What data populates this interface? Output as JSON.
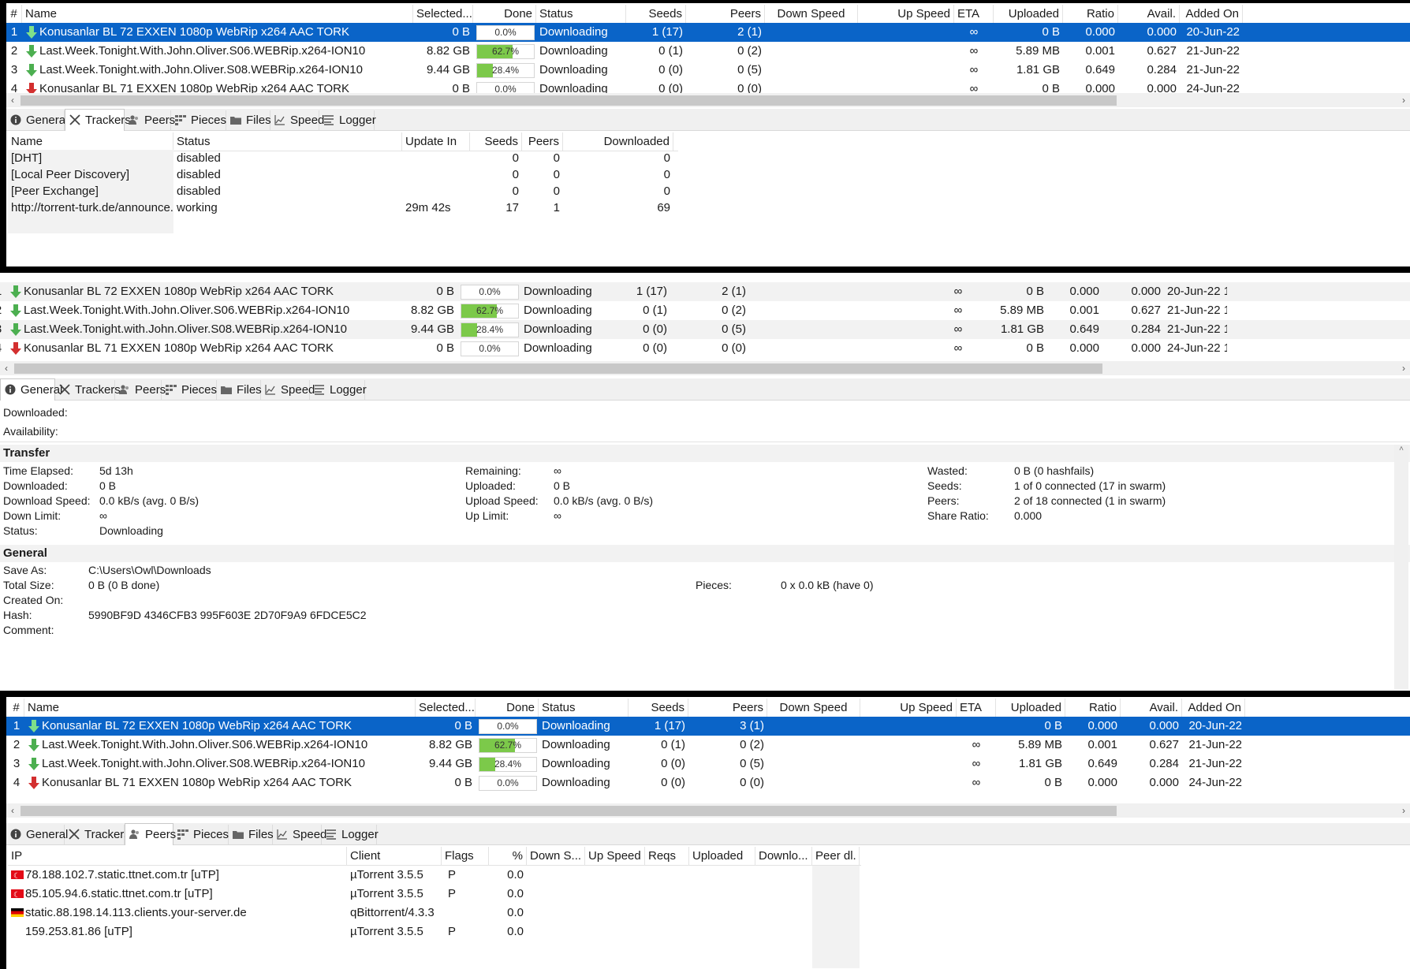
{
  "colors": {
    "selection": "#0a64c8",
    "progress": "#7cc94a",
    "download_green": "#4caf50",
    "download_red": "#d32f2f"
  },
  "torrent_columns": [
    "#",
    "Name",
    "Selected...",
    "Done",
    "Status",
    "Seeds",
    "Peers",
    "Down Speed",
    "Up Speed",
    "ETA",
    "Uploaded",
    "Ratio",
    "Avail.",
    "Added On"
  ],
  "panel1": {
    "torrents": [
      {
        "num": "1",
        "icon": "download-arrow-green-icon",
        "name": "Konusanlar BL 72 EXXEN 1080p WebRip x264 AAC TORK",
        "selected": "0 B",
        "done": "0.0%",
        "progress": 0.0,
        "status": "Downloading",
        "seeds": "1 (17)",
        "peers": "2 (1)",
        "down": "",
        "up": "",
        "eta": "∞",
        "uploaded": "0 B",
        "ratio": "0.000",
        "avail": "0.000",
        "added": "20-Jun-22"
      },
      {
        "num": "2",
        "icon": "download-arrow-green-icon",
        "name": "Last.Week.Tonight.With.John.Oliver.S06.WEBRip.x264-ION10",
        "selected": "8.82 GB",
        "done": "62.7%",
        "progress": 0.627,
        "status": "Downloading",
        "seeds": "0 (1)",
        "peers": "0 (2)",
        "down": "",
        "up": "",
        "eta": "∞",
        "uploaded": "5.89 MB",
        "ratio": "0.001",
        "avail": "0.627",
        "added": "21-Jun-22"
      },
      {
        "num": "3",
        "icon": "download-arrow-green-icon",
        "name": "Last.Week.Tonight.with.John.Oliver.S08.WEBRip.x264-ION10",
        "selected": "9.44 GB",
        "done": "28.4%",
        "progress": 0.284,
        "status": "Downloading",
        "seeds": "0 (0)",
        "peers": "0 (5)",
        "down": "",
        "up": "",
        "eta": "∞",
        "uploaded": "1.81 GB",
        "ratio": "0.649",
        "avail": "0.284",
        "added": "21-Jun-22"
      },
      {
        "num": "4",
        "icon": "download-arrow-red-icon",
        "name": "Konusanlar BL 71 EXXEN 1080p WebRip x264 AAC TORK",
        "selected": "0 B",
        "done": "0.0%",
        "progress": 0.0,
        "status": "Downloading",
        "seeds": "0 (0)",
        "peers": "0 (0)",
        "down": "",
        "up": "",
        "eta": "∞",
        "uploaded": "0 B",
        "ratio": "0.000",
        "avail": "0.000",
        "added": "24-Jun-22"
      }
    ],
    "tabs": [
      "General",
      "Trackers",
      "Peers",
      "Pieces",
      "Files",
      "Speed",
      "Logger"
    ],
    "active_tab": "Trackers",
    "tracker_columns": [
      "Name",
      "Status",
      "Update In",
      "Seeds",
      "Peers",
      "Downloaded"
    ],
    "trackers": [
      {
        "name": "[DHT]",
        "status": "disabled",
        "update": "",
        "seeds": "0",
        "peers": "0",
        "downloaded": "0"
      },
      {
        "name": "[Local Peer Discovery]",
        "status": "disabled",
        "update": "",
        "seeds": "0",
        "peers": "0",
        "downloaded": "0"
      },
      {
        "name": "[Peer Exchange]",
        "status": "disabled",
        "update": "",
        "seeds": "0",
        "peers": "0",
        "downloaded": "0"
      },
      {
        "name": "http://torrent-turk.de/announce.p...",
        "status": "working",
        "update": "29m 42s",
        "seeds": "17",
        "peers": "1",
        "downloaded": "69"
      }
    ]
  },
  "panel2": {
    "torrents": [
      {
        "num": "1",
        "name": "Konusanlar BL 72 EXXEN 1080p WebRip x264 AAC TORK",
        "selected": "0 B",
        "done": "0.0%",
        "progress": 0.0,
        "status": "Downloading",
        "seeds": "1 (17)",
        "peers": "2 (1)",
        "eta": "∞",
        "uploaded": "0 B",
        "ratio": "0.000",
        "avail": "0.000",
        "added": "20-Jun-22 1"
      },
      {
        "num": "2",
        "name": "Last.Week.Tonight.With.John.Oliver.S06.WEBRip.x264-ION10",
        "selected": "8.82 GB",
        "done": "62.7%",
        "progress": 0.627,
        "status": "Downloading",
        "seeds": "0 (1)",
        "peers": "0 (2)",
        "eta": "∞",
        "uploaded": "5.89 MB",
        "ratio": "0.001",
        "avail": "0.627",
        "added": "21-Jun-22 1"
      },
      {
        "num": "3",
        "name": "Last.Week.Tonight.with.John.Oliver.S08.WEBRip.x264-ION10",
        "selected": "9.44 GB",
        "done": "28.4%",
        "progress": 0.284,
        "status": "Downloading",
        "seeds": "0 (0)",
        "peers": "0 (5)",
        "eta": "∞",
        "uploaded": "1.81 GB",
        "ratio": "0.649",
        "avail": "0.284",
        "added": "21-Jun-22 1"
      },
      {
        "num": "4",
        "name": "Konusanlar BL 71 EXXEN 1080p WebRip x264 AAC TORK",
        "selected": "0 B",
        "done": "0.0%",
        "progress": 0.0,
        "status": "Downloading",
        "seeds": "0 (0)",
        "peers": "0 (0)",
        "eta": "∞",
        "uploaded": "0 B",
        "ratio": "0.000",
        "avail": "0.000",
        "added": "24-Jun-22 1"
      }
    ],
    "tabs": [
      "General",
      "Trackers",
      "Peers",
      "Pieces",
      "Files",
      "Speed",
      "Logger"
    ],
    "active_tab": "General",
    "top_labels": {
      "downloaded": "Downloaded:",
      "availability": "Availability:"
    },
    "transfer_title": "Transfer",
    "transfer": {
      "col1": [
        [
          "Time Elapsed:",
          "5d 13h"
        ],
        [
          "Downloaded:",
          "0 B"
        ],
        [
          "Download Speed:",
          "0.0 kB/s (avg. 0 B/s)"
        ],
        [
          "Down Limit:",
          "∞"
        ],
        [
          "Status:",
          "Downloading"
        ]
      ],
      "col2": [
        [
          "Remaining:",
          "∞"
        ],
        [
          "Uploaded:",
          "0 B"
        ],
        [
          "Upload Speed:",
          "0.0 kB/s (avg. 0 B/s)"
        ],
        [
          "Up Limit:",
          "∞"
        ]
      ],
      "col3": [
        [
          "Wasted:",
          "0 B (0 hashfails)"
        ],
        [
          "Seeds:",
          "1 of 0 connected (17 in swarm)"
        ],
        [
          "Peers:",
          "2 of 18 connected (1 in swarm)"
        ],
        [
          "Share Ratio:",
          "0.000"
        ]
      ]
    },
    "general_title": "General",
    "general": {
      "col1": [
        [
          "Save As:",
          "C:\\Users\\Owl\\Downloads"
        ],
        [
          "Total Size:",
          "0 B (0 B done)"
        ],
        [
          "Created On:",
          ""
        ],
        [
          "Hash:",
          "5990BF9D 4346CFB3 995F603E 2D70F9A9 6FDCE5C2"
        ],
        [
          "Comment:",
          ""
        ]
      ],
      "pieces_label": "Pieces:",
      "pieces_value": "0 x 0.0 kB (have 0)"
    }
  },
  "panel3": {
    "torrents": [
      {
        "num": "1",
        "icon": "download-arrow-green-icon",
        "name": "Konusanlar BL 72 EXXEN 1080p WebRip x264 AAC TORK",
        "selected": "0 B",
        "done": "0.0%",
        "progress": 0.0,
        "status": "Downloading",
        "seeds": "1 (17)",
        "peers": "3 (1)",
        "eta": "",
        "uploaded": "0 B",
        "ratio": "0.000",
        "avail": "0.000",
        "added": "20-Jun-22"
      },
      {
        "num": "2",
        "icon": "download-arrow-green-icon",
        "name": "Last.Week.Tonight.With.John.Oliver.S06.WEBRip.x264-ION10",
        "selected": "8.82 GB",
        "done": "62.7%",
        "progress": 0.627,
        "status": "Downloading",
        "seeds": "0 (1)",
        "peers": "0 (2)",
        "eta": "∞",
        "uploaded": "5.89 MB",
        "ratio": "0.001",
        "avail": "0.627",
        "added": "21-Jun-22"
      },
      {
        "num": "3",
        "icon": "download-arrow-green-icon",
        "name": "Last.Week.Tonight.with.John.Oliver.S08.WEBRip.x264-ION10",
        "selected": "9.44 GB",
        "done": "28.4%",
        "progress": 0.284,
        "status": "Downloading",
        "seeds": "0 (0)",
        "peers": "0 (5)",
        "eta": "∞",
        "uploaded": "1.81 GB",
        "ratio": "0.649",
        "avail": "0.284",
        "added": "21-Jun-22"
      },
      {
        "num": "4",
        "icon": "download-arrow-red-icon",
        "name": "Konusanlar BL 71 EXXEN 1080p WebRip x264 AAC TORK",
        "selected": "0 B",
        "done": "0.0%",
        "progress": 0.0,
        "status": "Downloading",
        "seeds": "0 (0)",
        "peers": "0 (0)",
        "eta": "∞",
        "uploaded": "0 B",
        "ratio": "0.000",
        "avail": "0.000",
        "added": "24-Jun-22"
      }
    ],
    "tabs": [
      "General",
      "Trackers",
      "Peers",
      "Pieces",
      "Files",
      "Speed",
      "Logger"
    ],
    "active_tab": "Peers",
    "peer_columns": [
      "IP",
      "Client",
      "Flags",
      "%",
      "Down S...",
      "Up Speed",
      "Reqs",
      "Uploaded",
      "Downlo...",
      "Peer dl."
    ],
    "peers": [
      {
        "flag": "turkey-flag-icon",
        "ip": "78.188.102.7.static.ttnet.com.tr [uTP]",
        "client": "µTorrent 3.5.5",
        "flags": "P",
        "pct": "0.0"
      },
      {
        "flag": "turkey-flag-icon",
        "ip": "85.105.94.6.static.ttnet.com.tr [uTP]",
        "client": "µTorrent 3.5.5",
        "flags": "P",
        "pct": "0.0"
      },
      {
        "flag": "germany-flag-icon",
        "ip": "static.88.198.14.113.clients.your-server.de",
        "client": "qBittorrent/4.3.3",
        "flags": "",
        "pct": "0.0"
      },
      {
        "flag": "",
        "ip": "159.253.81.86 [uTP]",
        "client": "µTorrent 3.5.5",
        "flags": "P",
        "pct": "0.0"
      }
    ]
  }
}
